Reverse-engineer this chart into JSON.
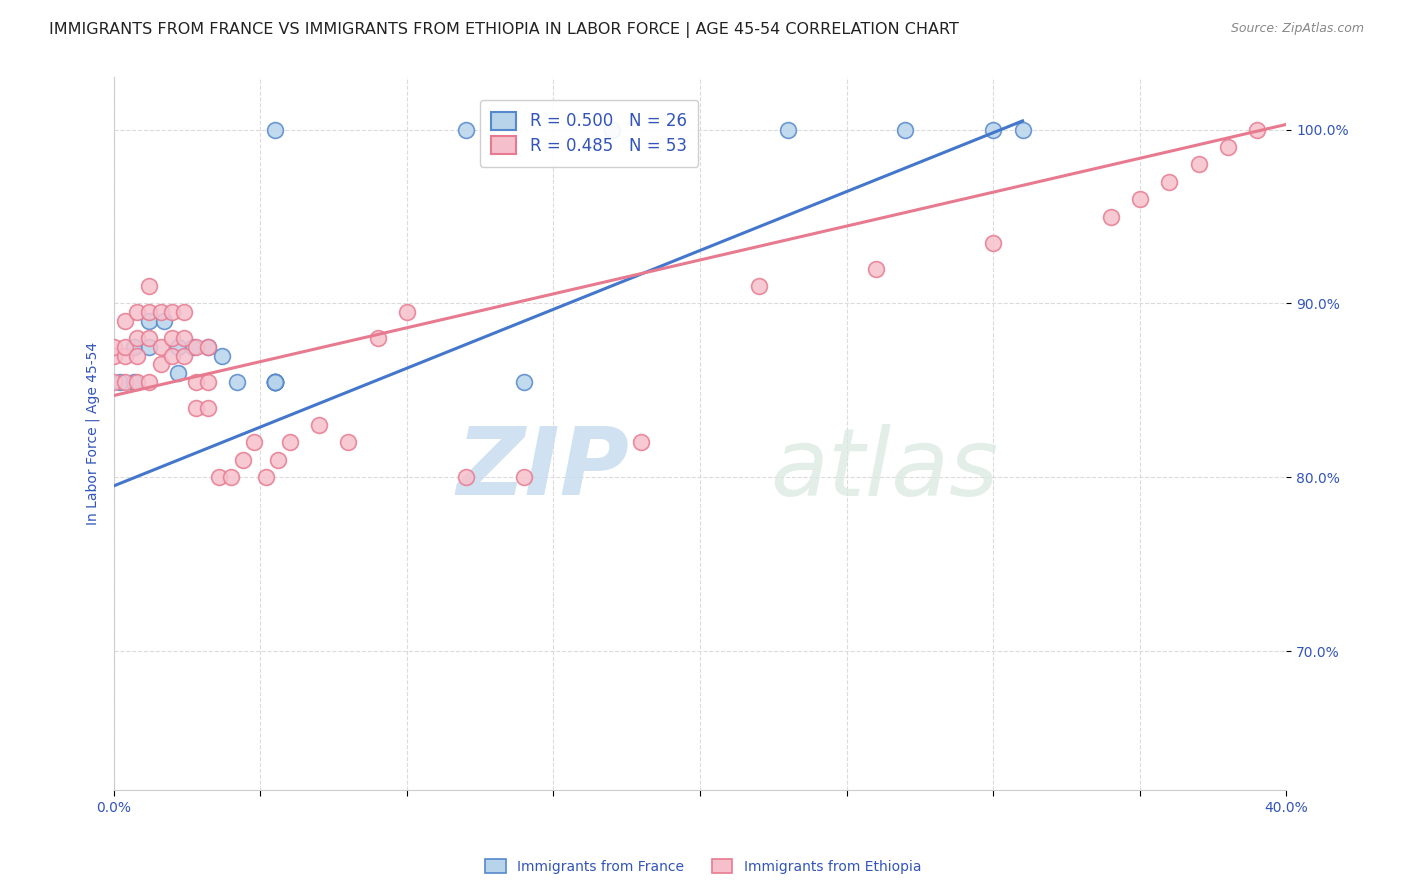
{
  "title": "IMMIGRANTS FROM FRANCE VS IMMIGRANTS FROM ETHIOPIA IN LABOR FORCE | AGE 45-54 CORRELATION CHART",
  "source": "Source: ZipAtlas.com",
  "ylabel": "In Labor Force | Age 45-54",
  "xlim": [
    0.0,
    0.4
  ],
  "ylim": [
    0.62,
    1.03
  ],
  "xtick_vals": [
    0.0,
    0.05,
    0.1,
    0.15,
    0.2,
    0.25,
    0.3,
    0.35,
    0.4
  ],
  "xtick_labels": [
    "0.0%",
    "",
    "",
    "",
    "",
    "",
    "",
    "",
    "40.0%"
  ],
  "ytick_vals": [
    0.7,
    0.8,
    0.9,
    1.0
  ],
  "ytick_labels": [
    "70.0%",
    "80.0%",
    "90.0%",
    "100.0%"
  ],
  "france_color": "#b8d4ea",
  "france_edge_color": "#5588cc",
  "ethiopia_color": "#f5c0cc",
  "ethiopia_edge_color": "#e87a90",
  "france_line_color": "#4477cc",
  "ethiopia_line_color": "#e87a90",
  "legend_text_color": "#3355bb",
  "R_france": 0.5,
  "N_france": 26,
  "R_ethiopia": 0.485,
  "N_ethiopia": 53,
  "watermark_zip": "ZIP",
  "watermark_atlas": "atlas",
  "france_x": [
    0.002,
    0.055,
    0.12,
    0.17,
    0.23,
    0.27,
    0.3,
    0.31,
    0.007,
    0.007,
    0.012,
    0.012,
    0.017,
    0.022,
    0.022,
    0.027,
    0.032,
    0.037,
    0.042,
    0.055,
    0.14,
    0.055,
    0.055,
    0.055,
    0.055,
    0.055
  ],
  "france_y": [
    0.855,
    1.0,
    1.0,
    1.0,
    1.0,
    1.0,
    1.0,
    1.0,
    0.855,
    0.875,
    0.875,
    0.89,
    0.89,
    0.86,
    0.875,
    0.875,
    0.875,
    0.87,
    0.855,
    0.855,
    0.855,
    0.855,
    0.855,
    0.855,
    0.855,
    0.855
  ],
  "ethiopia_x": [
    0.0,
    0.0,
    0.0,
    0.004,
    0.004,
    0.004,
    0.004,
    0.008,
    0.008,
    0.008,
    0.008,
    0.012,
    0.012,
    0.012,
    0.012,
    0.016,
    0.016,
    0.016,
    0.02,
    0.02,
    0.02,
    0.024,
    0.024,
    0.024,
    0.028,
    0.028,
    0.028,
    0.032,
    0.032,
    0.032,
    0.036,
    0.04,
    0.044,
    0.048,
    0.052,
    0.056,
    0.06,
    0.07,
    0.08,
    0.09,
    0.1,
    0.12,
    0.14,
    0.18,
    0.22,
    0.26,
    0.3,
    0.34,
    0.35,
    0.36,
    0.37,
    0.38,
    0.39
  ],
  "ethiopia_y": [
    0.855,
    0.87,
    0.875,
    0.855,
    0.87,
    0.875,
    0.89,
    0.855,
    0.87,
    0.88,
    0.895,
    0.855,
    0.88,
    0.895,
    0.91,
    0.865,
    0.875,
    0.895,
    0.87,
    0.88,
    0.895,
    0.87,
    0.88,
    0.895,
    0.84,
    0.855,
    0.875,
    0.84,
    0.855,
    0.875,
    0.8,
    0.8,
    0.81,
    0.82,
    0.8,
    0.81,
    0.82,
    0.83,
    0.82,
    0.88,
    0.895,
    0.8,
    0.8,
    0.82,
    0.91,
    0.92,
    0.935,
    0.95,
    0.96,
    0.97,
    0.98,
    0.99,
    1.0
  ],
  "france_trendline_x": [
    0.0,
    0.31
  ],
  "france_trendline_y": [
    0.795,
    1.005
  ],
  "ethiopia_trendline_x": [
    0.0,
    0.4
  ],
  "ethiopia_trendline_y": [
    0.847,
    1.003
  ],
  "marker_size": 130,
  "grid_color": "#d8d8d8",
  "background_color": "#ffffff",
  "title_fontsize": 11.5,
  "axis_label_fontsize": 10,
  "tick_fontsize": 10,
  "source_fontsize": 9,
  "legend_fontsize": 12
}
